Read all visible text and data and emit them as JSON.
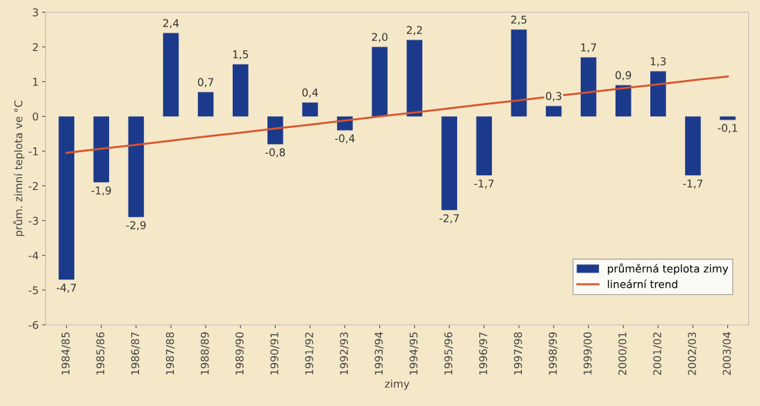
{
  "chart_data": {
    "type": "bar",
    "xlabel": "zimy",
    "ylabel": "prům. zimní teplota ve °C",
    "categories": [
      "1984/85",
      "1985/86",
      "1986/87",
      "1987/88",
      "1988/89",
      "1989/90",
      "1990/91",
      "1991/92",
      "1992/93",
      "1993/94",
      "1994/95",
      "1995/96",
      "1996/97",
      "1997/98",
      "1998/99",
      "1999/00",
      "2000/01",
      "2001/02",
      "2002/03",
      "2003/04"
    ],
    "series": [
      {
        "name": "průměrná teplota zimy",
        "color": "#1c3a8c",
        "values": [
          -4.7,
          -1.9,
          -2.9,
          2.4,
          0.7,
          1.5,
          -0.8,
          0.4,
          -0.4,
          2.0,
          2.2,
          -2.7,
          -1.7,
          2.5,
          0.3,
          1.7,
          0.9,
          1.3,
          -1.7,
          -0.1
        ],
        "value_labels": [
          "-4,7",
          "-1,9",
          "-2,9",
          "2,4",
          "0,7",
          "1,5",
          "-0,8",
          "0,4",
          "-0,4",
          "2,0",
          "2,2",
          "-2,7",
          "-1,7",
          "2,5",
          "0,3",
          "1,7",
          "0,9",
          "1,3",
          "-1,7",
          "-0,1"
        ]
      },
      {
        "name": "lineární trend",
        "type": "line",
        "color": "#d9542c",
        "values": [
          -1.05,
          -0.93,
          -0.82,
          -0.7,
          -0.58,
          -0.47,
          -0.35,
          -0.24,
          -0.12,
          0.0,
          0.11,
          0.23,
          0.35,
          0.46,
          0.58,
          0.69,
          0.81,
          0.92,
          1.04,
          1.15
        ]
      }
    ],
    "ylim": [
      -6,
      3
    ],
    "yticks": [
      -6,
      -5,
      -4,
      -3,
      -2,
      -1,
      0,
      1,
      2,
      3
    ],
    "grid": false,
    "legend": "bottom right"
  }
}
